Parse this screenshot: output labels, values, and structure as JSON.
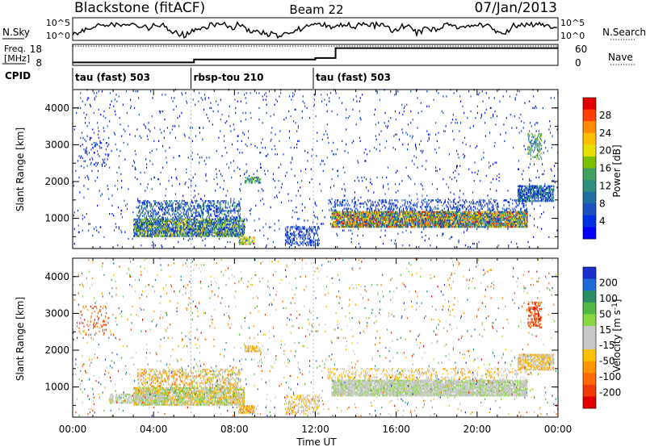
{
  "header": {
    "site": "Blackstone (fitACF)",
    "beam": "Beam 22",
    "date": "07/Jan/2013"
  },
  "nsky_panel": {
    "left_label": "N.Sky",
    "left_ticks": [
      "10^5",
      "10^0"
    ],
    "right_label": "N.Search",
    "right_ticks": [
      "10^5",
      "10^0"
    ]
  },
  "freq_panel": {
    "left_label_top": "Freq.",
    "left_label_bottom": "[MHz]",
    "left_ticks": [
      "18",
      "8"
    ],
    "right_label": "Nave",
    "right_ticks": [
      "60",
      "0"
    ],
    "cpid_label": "CPID",
    "freq_steps": [
      {
        "from_hour": 0,
        "to_hour": 6,
        "level": 0.14
      },
      {
        "from_hour": 6,
        "to_hour": 12,
        "level": 0.28
      },
      {
        "from_hour": 12,
        "to_hour": 13,
        "level": 0.35
      },
      {
        "from_hour": 13,
        "to_hour": 24,
        "level": 0.82
      }
    ]
  },
  "cpid_segments": [
    {
      "label": "tau (fast) 503",
      "start_hour": 0
    },
    {
      "label": "rbsp-tou 210",
      "start_hour": 5.85
    },
    {
      "label": "tau (fast) 503",
      "start_hour": 11.9
    }
  ],
  "axes": {
    "xlabel": "Time UT",
    "x_ticks": [
      "00:00",
      "04:00",
      "08:00",
      "12:00",
      "16:00",
      "20:00",
      "00:00"
    ],
    "ylabel": "Slant Range [km]",
    "y_ticks": [
      "1000",
      "2000",
      "3000",
      "4000"
    ]
  },
  "chart_data": [
    {
      "type": "heatmap",
      "title": "",
      "xlabel": "",
      "ylabel": "Slant Range [km]",
      "x_range_hours": [
        0,
        24
      ],
      "ylim": [
        180,
        4500
      ],
      "colorbar": {
        "label": "Power [dB]",
        "ticks": [
          "28",
          "24",
          "20",
          "16",
          "12",
          "8",
          "4"
        ],
        "colors": [
          "#e00000",
          "#ff4000",
          "#ff8c00",
          "#ffbe00",
          "#e8e000",
          "#7dc000",
          "#3fa060",
          "#2f9080",
          "#1f70a0",
          "#1e50c0",
          "#0030e0",
          "#0000ff"
        ]
      },
      "regions": [
        {
          "t": [
            3.0,
            8.5
          ],
          "r": [
            500,
            1000
          ],
          "density": 0.75,
          "levels": [
            3,
            11
          ]
        },
        {
          "t": [
            3.2,
            8.3
          ],
          "r": [
            1000,
            1500
          ],
          "density": 0.35,
          "levels": [
            6,
            11
          ]
        },
        {
          "t": [
            8.2,
            9.0
          ],
          "r": [
            280,
            520
          ],
          "density": 0.6,
          "levels": [
            2,
            7
          ]
        },
        {
          "t": [
            8.5,
            9.3
          ],
          "r": [
            1950,
            2150
          ],
          "density": 0.5,
          "levels": [
            5,
            9
          ]
        },
        {
          "t": [
            12.8,
            22.5
          ],
          "r": [
            750,
            1200
          ],
          "density": 0.85,
          "levels": [
            0,
            10
          ]
        },
        {
          "t": [
            12.6,
            22.5
          ],
          "r": [
            1200,
            1500
          ],
          "density": 0.2,
          "levels": [
            8,
            11
          ]
        },
        {
          "t": [
            22.0,
            23.8
          ],
          "r": [
            1450,
            1900
          ],
          "density": 0.7,
          "levels": [
            6,
            11
          ]
        },
        {
          "t": [
            0.0,
            24.0
          ],
          "r": [
            200,
            4500
          ],
          "density": 0.02,
          "levels": [
            9,
            11
          ]
        },
        {
          "t": [
            10.5,
            12.2
          ],
          "r": [
            250,
            800
          ],
          "density": 0.35,
          "levels": [
            8,
            11
          ]
        },
        {
          "t": [
            22.5,
            23.2
          ],
          "r": [
            2600,
            3300
          ],
          "density": 0.35,
          "levels": [
            4,
            9
          ]
        },
        {
          "t": [
            0.3,
            1.8
          ],
          "r": [
            2400,
            3200
          ],
          "density": 0.1,
          "levels": [
            9,
            11
          ]
        }
      ]
    },
    {
      "type": "heatmap",
      "title": "",
      "xlabel": "Time UT",
      "ylabel": "Slant Range [km]",
      "x_range_hours": [
        0,
        24
      ],
      "ylim": [
        180,
        4500
      ],
      "colorbar": {
        "label": "Velocity [m s^-1]",
        "ticks": [
          "200",
          "100",
          "50",
          "15",
          "-15",
          "-50",
          "-100",
          "-200"
        ],
        "colors": [
          "#1a2ecc",
          "#1e6bd6",
          "#2a8f66",
          "#52b844",
          "#8ad640",
          "#c8c8c8",
          "#c8c8c8",
          "#ffc000",
          "#ff9600",
          "#ff6a00",
          "#f03c00",
          "#e00000"
        ]
      },
      "regions": [
        {
          "t": [
            3.0,
            8.5
          ],
          "r": [
            500,
            1000
          ],
          "density": 0.75,
          "levels": [
            3,
            8
          ]
        },
        {
          "t": [
            1.8,
            4.5
          ],
          "r": [
            550,
            800
          ],
          "density": 0.55,
          "levels": [
            4,
            6
          ]
        },
        {
          "t": [
            3.2,
            8.3
          ],
          "r": [
            1000,
            1500
          ],
          "density": 0.35,
          "levels": [
            4,
            9
          ]
        },
        {
          "t": [
            8.2,
            9.0
          ],
          "r": [
            280,
            520
          ],
          "density": 0.6,
          "levels": [
            6,
            9
          ]
        },
        {
          "t": [
            8.5,
            9.3
          ],
          "r": [
            1950,
            2150
          ],
          "density": 0.5,
          "levels": [
            6,
            8
          ]
        },
        {
          "t": [
            12.8,
            22.5
          ],
          "r": [
            750,
            1200
          ],
          "density": 0.85,
          "levels": [
            4,
            6
          ]
        },
        {
          "t": [
            12.6,
            22.5
          ],
          "r": [
            1200,
            1500
          ],
          "density": 0.2,
          "levels": [
            5,
            8
          ]
        },
        {
          "t": [
            22.0,
            23.8
          ],
          "r": [
            1450,
            1900
          ],
          "density": 0.7,
          "levels": [
            5,
            8
          ]
        },
        {
          "t": [
            0.0,
            24.0
          ],
          "r": [
            200,
            4500
          ],
          "density": 0.02,
          "levels": [
            0,
            11
          ]
        },
        {
          "t": [
            10.5,
            12.2
          ],
          "r": [
            250,
            800
          ],
          "density": 0.35,
          "levels": [
            5,
            8
          ]
        },
        {
          "t": [
            22.5,
            23.2
          ],
          "r": [
            2600,
            3300
          ],
          "density": 0.35,
          "levels": [
            9,
            11
          ]
        },
        {
          "t": [
            0.3,
            1.8
          ],
          "r": [
            2400,
            3200
          ],
          "density": 0.1,
          "levels": [
            8,
            11
          ]
        }
      ]
    }
  ]
}
